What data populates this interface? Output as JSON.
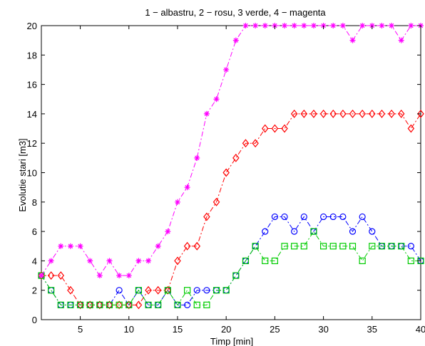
{
  "chart_data": {
    "type": "line",
    "title": "1 − albastru, 2 − rosu, 3 verde, 4 − magenta",
    "xlabel": "Timp [min]",
    "ylabel": "Evolutie stari [m3]",
    "xlim": [
      1,
      40
    ],
    "ylim": [
      0,
      20
    ],
    "xticks": [
      5,
      10,
      15,
      20,
      25,
      30,
      35,
      40
    ],
    "yticks": [
      0,
      2,
      4,
      6,
      8,
      10,
      12,
      14,
      16,
      18,
      20
    ],
    "grid": false,
    "x": [
      1,
      2,
      3,
      4,
      5,
      6,
      7,
      8,
      9,
      10,
      11,
      12,
      13,
      14,
      15,
      16,
      17,
      18,
      19,
      20,
      21,
      22,
      23,
      24,
      25,
      26,
      27,
      28,
      29,
      30,
      31,
      32,
      33,
      34,
      35,
      36,
      37,
      38,
      39,
      40
    ],
    "series": [
      {
        "color": "#0000ff",
        "marker": "circle",
        "linestyle": "dashdot",
        "values": [
          3,
          2,
          1,
          1,
          1,
          1,
          1,
          1,
          2,
          1,
          2,
          1,
          1,
          2,
          1,
          1,
          2,
          2,
          2,
          2,
          3,
          4,
          5,
          6,
          7,
          7,
          6,
          7,
          6,
          7,
          7,
          7,
          6,
          7,
          6,
          5,
          5,
          5,
          5,
          4
        ]
      },
      {
        "color": "#ff0000",
        "marker": "diamond",
        "linestyle": "dashdot",
        "values": [
          3,
          3,
          3,
          2,
          1,
          1,
          1,
          1,
          1,
          1,
          1,
          2,
          2,
          2,
          4,
          5,
          5,
          7,
          8,
          10,
          11,
          12,
          12,
          13,
          13,
          13,
          14,
          14,
          14,
          14,
          14,
          14,
          14,
          14,
          14,
          14,
          14,
          14,
          13,
          14
        ]
      },
      {
        "color": "#00cc00",
        "marker": "square",
        "linestyle": "dashdot",
        "values": [
          3,
          2,
          1,
          1,
          1,
          1,
          1,
          1,
          1,
          1,
          2,
          1,
          1,
          2,
          1,
          2,
          1,
          1,
          2,
          2,
          3,
          4,
          5,
          4,
          4,
          5,
          5,
          5,
          6,
          5,
          5,
          5,
          5,
          4,
          5,
          5,
          5,
          5,
          4,
          4
        ]
      },
      {
        "color": "#ff00ff",
        "marker": "asterisk",
        "linestyle": "dashdot",
        "values": [
          3,
          4,
          5,
          5,
          5,
          4,
          3,
          4,
          3,
          3,
          4,
          4,
          5,
          6,
          8,
          9,
          11,
          14,
          15,
          17,
          19,
          20,
          20,
          20,
          20,
          20,
          20,
          20,
          20,
          20,
          20,
          20,
          19,
          20,
          20,
          20,
          20,
          19,
          20,
          20
        ]
      }
    ]
  }
}
